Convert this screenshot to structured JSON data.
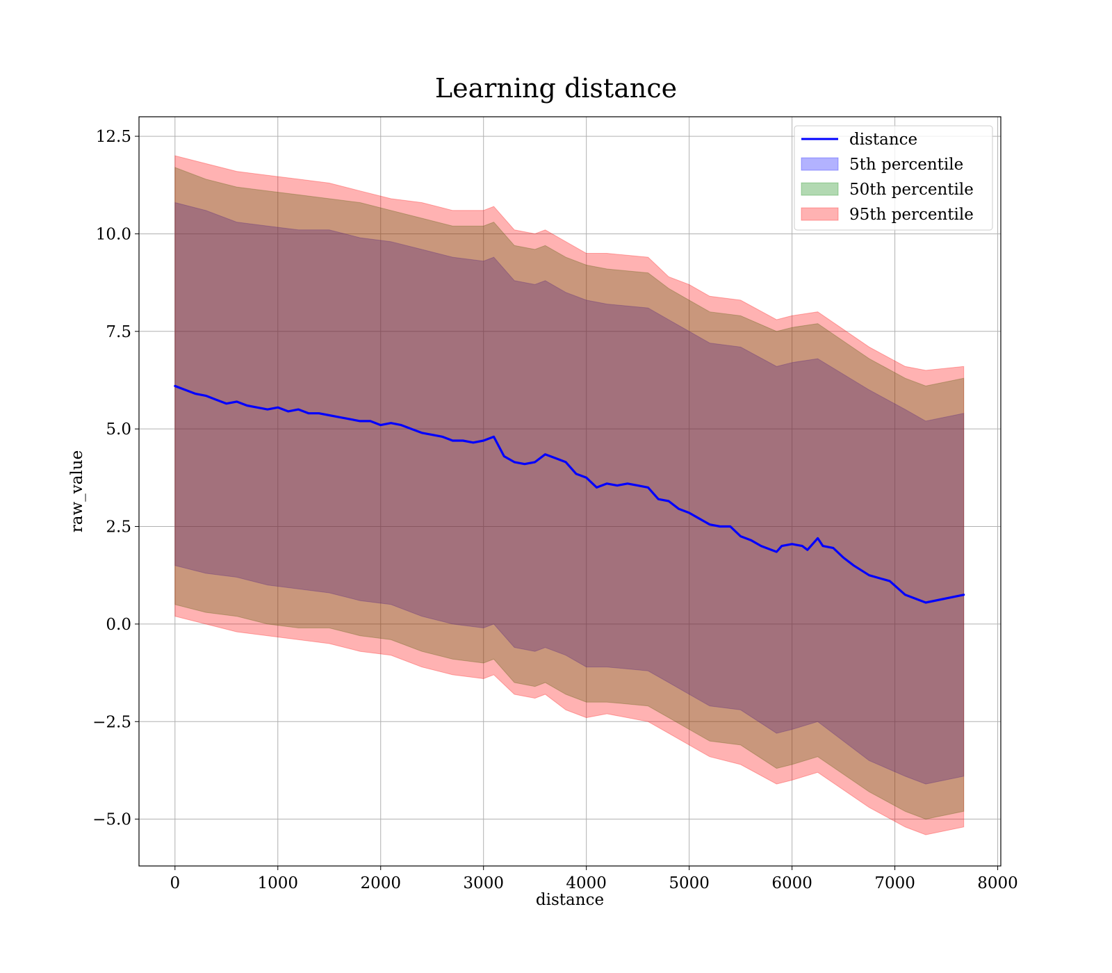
{
  "chart_data": {
    "type": "line",
    "title": "Learning distance",
    "xlabel": "distance",
    "ylabel": "raw_value",
    "xlim": [
      -350,
      8030
    ],
    "ylim": [
      -6.2,
      13.0
    ],
    "xticks": [
      0,
      1000,
      2000,
      3000,
      4000,
      5000,
      6000,
      7000,
      8000
    ],
    "xtick_labels": [
      "0",
      "1000",
      "2000",
      "3000",
      "4000",
      "5000",
      "6000",
      "7000",
      "8000"
    ],
    "yticks": [
      -5.0,
      -2.5,
      0.0,
      2.5,
      5.0,
      7.5,
      10.0,
      12.5
    ],
    "ytick_labels": [
      "−5.0",
      "−2.5",
      "0.0",
      "2.5",
      "5.0",
      "7.5",
      "10.0",
      "12.5"
    ],
    "grid": true,
    "legend_position": "top-right",
    "line": {
      "name": "distance",
      "color": "#0000ff",
      "x": [
        0,
        100,
        200,
        300,
        400,
        500,
        600,
        700,
        800,
        900,
        1000,
        1100,
        1200,
        1300,
        1400,
        1500,
        1600,
        1700,
        1800,
        1900,
        2000,
        2100,
        2200,
        2300,
        2400,
        2500,
        2600,
        2700,
        2800,
        2900,
        3000,
        3100,
        3200,
        3300,
        3400,
        3500,
        3600,
        3700,
        3800,
        3900,
        4000,
        4100,
        4200,
        4300,
        4400,
        4500,
        4600,
        4700,
        4800,
        4900,
        5000,
        5100,
        5200,
        5300,
        5400,
        5500,
        5600,
        5700,
        5800,
        5850,
        5900,
        6000,
        6100,
        6150,
        6250,
        6300,
        6400,
        6500,
        6600,
        6750,
        6950,
        7100,
        7300,
        7670
      ],
      "y": [
        6.1,
        6.0,
        5.9,
        5.85,
        5.75,
        5.65,
        5.7,
        5.6,
        5.55,
        5.5,
        5.55,
        5.45,
        5.5,
        5.4,
        5.4,
        5.35,
        5.3,
        5.25,
        5.2,
        5.2,
        5.1,
        5.15,
        5.1,
        5.0,
        4.9,
        4.85,
        4.8,
        4.7,
        4.7,
        4.65,
        4.7,
        4.8,
        4.3,
        4.15,
        4.1,
        4.15,
        4.35,
        4.25,
        4.15,
        3.85,
        3.75,
        3.5,
        3.6,
        3.55,
        3.6,
        3.55,
        3.5,
        3.2,
        3.15,
        2.95,
        2.85,
        2.7,
        2.55,
        2.5,
        2.5,
        2.25,
        2.15,
        2.0,
        1.9,
        1.85,
        2.0,
        2.05,
        2.0,
        1.9,
        2.2,
        2.0,
        1.95,
        1.7,
        1.5,
        1.25,
        1.1,
        0.75,
        0.55,
        0.75
      ]
    },
    "bands": [
      {
        "name": "5th percentile",
        "color": "#0000ff",
        "x": [
          0,
          300,
          600,
          900,
          1200,
          1500,
          1800,
          2100,
          2400,
          2700,
          3000,
          3100,
          3300,
          3500,
          3600,
          3800,
          4000,
          4200,
          4600,
          4800,
          5000,
          5200,
          5500,
          5850,
          6000,
          6250,
          6750,
          7100,
          7300,
          7670
        ],
        "upper": [
          10.8,
          10.6,
          10.3,
          10.2,
          10.1,
          10.1,
          9.9,
          9.8,
          9.6,
          9.4,
          9.3,
          9.4,
          8.8,
          8.7,
          8.8,
          8.5,
          8.3,
          8.2,
          8.1,
          7.8,
          7.5,
          7.2,
          7.1,
          6.6,
          6.7,
          6.8,
          6.0,
          5.5,
          5.2,
          5.4
        ],
        "lower": [
          1.5,
          1.3,
          1.2,
          1.0,
          0.9,
          0.8,
          0.6,
          0.5,
          0.2,
          0.0,
          -0.1,
          0.0,
          -0.6,
          -0.7,
          -0.6,
          -0.8,
          -1.1,
          -1.1,
          -1.2,
          -1.5,
          -1.8,
          -2.1,
          -2.2,
          -2.8,
          -2.7,
          -2.5,
          -3.5,
          -3.9,
          -4.1,
          -3.9
        ]
      },
      {
        "name": "50th percentile",
        "color": "#008000",
        "x": [
          0,
          300,
          600,
          900,
          1200,
          1500,
          1800,
          2100,
          2400,
          2700,
          3000,
          3100,
          3300,
          3500,
          3600,
          3800,
          4000,
          4200,
          4600,
          4800,
          5000,
          5200,
          5500,
          5850,
          6000,
          6250,
          6750,
          7100,
          7300,
          7670
        ],
        "upper": [
          11.7,
          11.4,
          11.2,
          11.1,
          11.0,
          10.9,
          10.8,
          10.6,
          10.4,
          10.2,
          10.2,
          10.3,
          9.7,
          9.6,
          9.7,
          9.4,
          9.2,
          9.1,
          9.0,
          8.6,
          8.3,
          8.0,
          7.9,
          7.5,
          7.6,
          7.7,
          6.8,
          6.3,
          6.1,
          6.3
        ],
        "lower": [
          0.5,
          0.3,
          0.2,
          0.0,
          -0.1,
          -0.1,
          -0.3,
          -0.4,
          -0.7,
          -0.9,
          -1.0,
          -0.9,
          -1.5,
          -1.6,
          -1.5,
          -1.8,
          -2.0,
          -2.0,
          -2.1,
          -2.4,
          -2.7,
          -3.0,
          -3.1,
          -3.7,
          -3.6,
          -3.4,
          -4.3,
          -4.8,
          -5.0,
          -4.8
        ]
      },
      {
        "name": "95th percentile",
        "color": "#ff0000",
        "x": [
          0,
          300,
          600,
          900,
          1200,
          1500,
          1800,
          2100,
          2400,
          2700,
          3000,
          3100,
          3300,
          3500,
          3600,
          3800,
          4000,
          4200,
          4600,
          4800,
          5000,
          5200,
          5500,
          5850,
          6000,
          6250,
          6750,
          7100,
          7300,
          7670
        ],
        "upper": [
          12.0,
          11.8,
          11.6,
          11.5,
          11.4,
          11.3,
          11.1,
          10.9,
          10.8,
          10.6,
          10.6,
          10.7,
          10.1,
          10.0,
          10.1,
          9.8,
          9.5,
          9.5,
          9.4,
          8.9,
          8.7,
          8.4,
          8.3,
          7.8,
          7.9,
          8.0,
          7.1,
          6.6,
          6.5,
          6.6
        ],
        "lower": [
          0.2,
          0.0,
          -0.2,
          -0.3,
          -0.4,
          -0.5,
          -0.7,
          -0.8,
          -1.1,
          -1.3,
          -1.4,
          -1.3,
          -1.8,
          -1.9,
          -1.8,
          -2.2,
          -2.4,
          -2.3,
          -2.5,
          -2.8,
          -3.1,
          -3.4,
          -3.6,
          -4.1,
          -4.0,
          -3.8,
          -4.7,
          -5.2,
          -5.4,
          -5.2
        ]
      }
    ],
    "legend": {
      "entries": [
        "distance",
        "5th percentile",
        "50th percentile",
        "95th percentile"
      ]
    }
  }
}
